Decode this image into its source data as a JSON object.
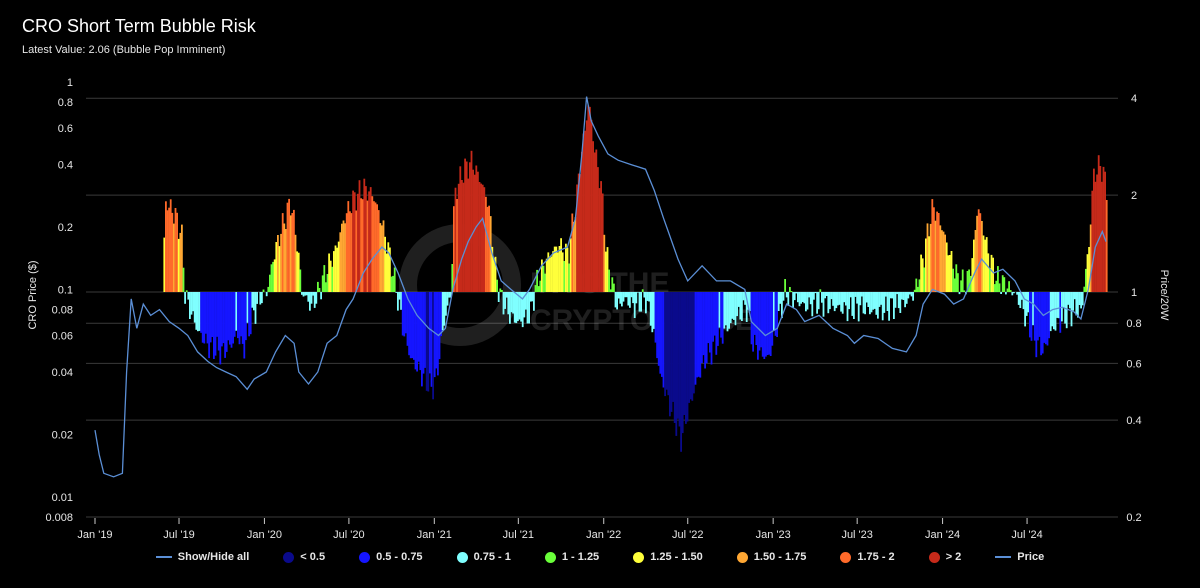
{
  "header": {
    "title": "CRO Short Term Bubble Risk",
    "subtitle": "Latest Value: 2.06 (Bubble Pop Imminent)"
  },
  "watermark": {
    "text_line1": "INTO THE",
    "text_line2": "CRYPTOVERSE"
  },
  "legend": [
    {
      "label": "Show/Hide all",
      "kind": "line",
      "color": "#5b8fd6"
    },
    {
      "label": "< 0.5",
      "kind": "dot",
      "color": "#0a0a8c"
    },
    {
      "label": "0.5 - 0.75",
      "kind": "dot",
      "color": "#1515ff"
    },
    {
      "label": "0.75 - 1",
      "kind": "dot",
      "color": "#7fffff"
    },
    {
      "label": "1 - 1.25",
      "kind": "dot",
      "color": "#6aff3a"
    },
    {
      "label": "1.25 - 1.50",
      "kind": "dot",
      "color": "#ffff3a"
    },
    {
      "label": "1.50 - 1.75",
      "kind": "dot",
      "color": "#ffa733"
    },
    {
      "label": "1.75 - 2",
      "kind": "dot",
      "color": "#ff6a2a"
    },
    {
      "label": "> 2",
      "kind": "dot",
      "color": "#c62a1a"
    },
    {
      "label": "Price",
      "kind": "line",
      "color": "#5b8fd6"
    }
  ],
  "chart_data": {
    "type": "bar+line",
    "left_axis": {
      "label": "CRO Price ($)",
      "scale": "log",
      "range": [
        0.008,
        1
      ],
      "ticks": [
        {
          "v": 1,
          "t": "1"
        },
        {
          "v": 0.8,
          "t": "0.8"
        },
        {
          "v": 0.6,
          "t": "0.6"
        },
        {
          "v": 0.4,
          "t": "0.4"
        },
        {
          "v": 0.2,
          "t": "0.2"
        },
        {
          "v": 0.1,
          "t": "0.1"
        },
        {
          "v": 0.08,
          "t": "0.08"
        },
        {
          "v": 0.06,
          "t": "0.06"
        },
        {
          "v": 0.04,
          "t": "0.04"
        },
        {
          "v": 0.02,
          "t": "0.02"
        },
        {
          "v": 0.01,
          "t": "0.01"
        },
        {
          "v": 0.008,
          "t": "0.008"
        }
      ]
    },
    "right_axis": {
      "label": "Price/20W",
      "scale": "log",
      "range": [
        0.2,
        5
      ],
      "ticks": [
        {
          "v": 4,
          "t": "4"
        },
        {
          "v": 2,
          "t": "2"
        },
        {
          "v": 1,
          "t": "1"
        },
        {
          "v": 0.8,
          "t": "0.8"
        },
        {
          "v": 0.6,
          "t": "0.6"
        },
        {
          "v": 0.4,
          "t": "0.4"
        },
        {
          "v": 0.2,
          "t": "0.2"
        }
      ]
    },
    "x_axis": {
      "start": "2019-01-01",
      "end": "2024-12-31",
      "ticks": [
        {
          "d": "2019-01-01",
          "t": "Jan '19"
        },
        {
          "d": "2019-07-01",
          "t": "Jul '19"
        },
        {
          "d": "2020-01-01",
          "t": "Jan '20"
        },
        {
          "d": "2020-07-01",
          "t": "Jul '20"
        },
        {
          "d": "2021-01-01",
          "t": "Jan '21"
        },
        {
          "d": "2021-07-01",
          "t": "Jul '21"
        },
        {
          "d": "2022-01-01",
          "t": "Jan '22"
        },
        {
          "d": "2022-07-01",
          "t": "Jul '22"
        },
        {
          "d": "2023-01-01",
          "t": "Jan '23"
        },
        {
          "d": "2023-07-01",
          "t": "Jul '23"
        },
        {
          "d": "2024-01-01",
          "t": "Jan '24"
        },
        {
          "d": "2024-07-01",
          "t": "Jul '24"
        }
      ]
    },
    "bands": [
      {
        "lo": 0,
        "hi": 0.5,
        "color": "#0a0a8c"
      },
      {
        "lo": 0.5,
        "hi": 0.75,
        "color": "#1515ff"
      },
      {
        "lo": 0.75,
        "hi": 1,
        "color": "#7fffff"
      },
      {
        "lo": 1,
        "hi": 1.25,
        "color": "#6aff3a"
      },
      {
        "lo": 1.25,
        "hi": 1.5,
        "color": "#ffff3a"
      },
      {
        "lo": 1.5,
        "hi": 1.75,
        "color": "#ffa733"
      },
      {
        "lo": 1.75,
        "hi": 2,
        "color": "#ff6a2a"
      },
      {
        "lo": 2,
        "hi": 100,
        "color": "#c62a1a"
      }
    ],
    "ratio_series": {
      "name": "Price/20W",
      "points": [
        [
          "2019-05-25",
          1.0
        ],
        [
          "2019-06-01",
          1.9
        ],
        [
          "2019-06-20",
          1.75
        ],
        [
          "2019-07-05",
          1.5
        ],
        [
          "2019-07-12",
          1.0
        ],
        [
          "2019-07-20",
          0.9
        ],
        [
          "2019-08-10",
          0.75
        ],
        [
          "2019-09-01",
          0.68
        ],
        [
          "2019-10-01",
          0.65
        ],
        [
          "2019-10-25",
          0.7
        ],
        [
          "2019-11-01",
          0.75
        ],
        [
          "2019-11-15",
          0.66
        ],
        [
          "2019-12-01",
          0.8
        ],
        [
          "2019-12-20",
          0.95
        ],
        [
          "2020-01-05",
          1.0
        ],
        [
          "2020-01-20",
          1.3
        ],
        [
          "2020-02-10",
          1.65
        ],
        [
          "2020-02-25",
          1.9
        ],
        [
          "2020-03-10",
          1.4
        ],
        [
          "2020-03-20",
          1.0
        ],
        [
          "2020-04-10",
          0.9
        ],
        [
          "2020-04-25",
          1.0
        ],
        [
          "2020-05-10",
          1.15
        ],
        [
          "2020-06-01",
          1.35
        ],
        [
          "2020-06-20",
          1.7
        ],
        [
          "2020-07-10",
          1.95
        ],
        [
          "2020-08-01",
          2.1
        ],
        [
          "2020-08-20",
          2.0
        ],
        [
          "2020-09-05",
          1.7
        ],
        [
          "2020-09-25",
          1.3
        ],
        [
          "2020-10-10",
          1.0
        ],
        [
          "2020-10-25",
          0.75
        ],
        [
          "2020-11-10",
          0.62
        ],
        [
          "2020-12-05",
          0.55
        ],
        [
          "2020-12-25",
          0.5
        ],
        [
          "2021-01-05",
          0.55
        ],
        [
          "2021-01-20",
          0.8
        ],
        [
          "2021-02-05",
          1.0
        ],
        [
          "2021-02-12",
          2.0
        ],
        [
          "2021-03-01",
          2.35
        ],
        [
          "2021-03-20",
          2.55
        ],
        [
          "2021-04-10",
          2.2
        ],
        [
          "2021-04-25",
          1.9
        ],
        [
          "2021-05-10",
          1.2
        ],
        [
          "2021-05-20",
          0.98
        ],
        [
          "2021-06-10",
          0.85
        ],
        [
          "2021-07-01",
          0.8
        ],
        [
          "2021-07-25",
          0.85
        ],
        [
          "2021-08-10",
          1.1
        ],
        [
          "2021-09-05",
          1.3
        ],
        [
          "2021-09-25",
          1.4
        ],
        [
          "2021-10-15",
          1.3
        ],
        [
          "2021-11-01",
          1.9
        ],
        [
          "2021-11-20",
          3.2
        ],
        [
          "2021-11-28",
          3.9
        ],
        [
          "2021-12-10",
          2.8
        ],
        [
          "2021-12-25",
          2.1
        ],
        [
          "2022-01-05",
          1.3
        ],
        [
          "2022-01-15",
          1.1
        ],
        [
          "2022-01-28",
          0.9
        ],
        [
          "2022-02-15",
          0.95
        ],
        [
          "2022-03-05",
          0.9
        ],
        [
          "2022-04-01",
          0.95
        ],
        [
          "2022-05-01",
          0.55
        ],
        [
          "2022-05-20",
          0.45
        ],
        [
          "2022-06-15",
          0.35
        ],
        [
          "2022-07-05",
          0.45
        ],
        [
          "2022-08-01",
          0.6
        ],
        [
          "2022-09-01",
          0.7
        ],
        [
          "2022-10-01",
          0.8
        ],
        [
          "2022-11-05",
          0.9
        ],
        [
          "2022-11-15",
          0.7
        ],
        [
          "2022-12-01",
          0.65
        ],
        [
          "2022-12-20",
          0.62
        ],
        [
          "2023-01-05",
          0.75
        ],
        [
          "2023-01-25",
          1.0
        ],
        [
          "2023-02-15",
          0.95
        ],
        [
          "2023-03-10",
          0.9
        ],
        [
          "2023-04-10",
          0.93
        ],
        [
          "2023-05-10",
          0.9
        ],
        [
          "2023-06-10",
          0.88
        ],
        [
          "2023-07-10",
          0.9
        ],
        [
          "2023-08-10",
          0.86
        ],
        [
          "2023-09-10",
          0.9
        ],
        [
          "2023-10-10",
          0.92
        ],
        [
          "2023-11-01",
          1.0
        ],
        [
          "2023-11-20",
          1.3
        ],
        [
          "2023-12-10",
          1.85
        ],
        [
          "2023-12-25",
          1.65
        ],
        [
          "2024-01-15",
          1.3
        ],
        [
          "2024-02-01",
          1.1
        ],
        [
          "2024-02-20",
          1.05
        ],
        [
          "2024-03-05",
          1.3
        ],
        [
          "2024-03-15",
          1.85
        ],
        [
          "2024-04-05",
          1.35
        ],
        [
          "2024-04-25",
          1.1
        ],
        [
          "2024-05-15",
          1.05
        ],
        [
          "2024-06-05",
          0.98
        ],
        [
          "2024-06-25",
          0.85
        ],
        [
          "2024-07-15",
          0.7
        ],
        [
          "2024-08-05",
          0.66
        ],
        [
          "2024-08-25",
          0.78
        ],
        [
          "2024-09-15",
          0.82
        ],
        [
          "2024-10-10",
          0.88
        ],
        [
          "2024-10-25",
          0.87
        ],
        [
          "2024-11-10",
          1.4
        ],
        [
          "2024-11-20",
          2.3
        ],
        [
          "2024-12-05",
          2.5
        ],
        [
          "2024-12-18",
          2.1
        ]
      ]
    },
    "price_series": {
      "name": "Price",
      "color": "#5b8fd6",
      "points": [
        [
          "2019-01-01",
          0.021
        ],
        [
          "2019-01-10",
          0.016
        ],
        [
          "2019-01-20",
          0.013
        ],
        [
          "2019-02-10",
          0.0125
        ],
        [
          "2019-03-01",
          0.013
        ],
        [
          "2019-03-10",
          0.04
        ],
        [
          "2019-03-20",
          0.09
        ],
        [
          "2019-04-01",
          0.065
        ],
        [
          "2019-04-15",
          0.085
        ],
        [
          "2019-05-01",
          0.075
        ],
        [
          "2019-05-20",
          0.08
        ],
        [
          "2019-06-10",
          0.07
        ],
        [
          "2019-07-01",
          0.065
        ],
        [
          "2019-07-20",
          0.06
        ],
        [
          "2019-08-10",
          0.05
        ],
        [
          "2019-09-01",
          0.045
        ],
        [
          "2019-09-20",
          0.042
        ],
        [
          "2019-10-10",
          0.04
        ],
        [
          "2019-11-01",
          0.038
        ],
        [
          "2019-11-25",
          0.033
        ],
        [
          "2019-12-10",
          0.037
        ],
        [
          "2020-01-05",
          0.04
        ],
        [
          "2020-01-25",
          0.05
        ],
        [
          "2020-02-15",
          0.06
        ],
        [
          "2020-03-05",
          0.055
        ],
        [
          "2020-03-15",
          0.04
        ],
        [
          "2020-04-05",
          0.035
        ],
        [
          "2020-04-25",
          0.04
        ],
        [
          "2020-05-15",
          0.055
        ],
        [
          "2020-06-05",
          0.06
        ],
        [
          "2020-06-25",
          0.08
        ],
        [
          "2020-07-10",
          0.09
        ],
        [
          "2020-08-01",
          0.12
        ],
        [
          "2020-08-20",
          0.14
        ],
        [
          "2020-09-10",
          0.16
        ],
        [
          "2020-09-25",
          0.15
        ],
        [
          "2020-10-15",
          0.12
        ],
        [
          "2020-11-05",
          0.09
        ],
        [
          "2020-11-25",
          0.075
        ],
        [
          "2020-12-20",
          0.065
        ],
        [
          "2021-01-10",
          0.06
        ],
        [
          "2021-01-25",
          0.065
        ],
        [
          "2021-02-10",
          0.1
        ],
        [
          "2021-03-01",
          0.14
        ],
        [
          "2021-03-15",
          0.17
        ],
        [
          "2021-04-01",
          0.2
        ],
        [
          "2021-04-15",
          0.22
        ],
        [
          "2021-05-05",
          0.15
        ],
        [
          "2021-05-25",
          0.11
        ],
        [
          "2021-06-15",
          0.1
        ],
        [
          "2021-07-10",
          0.09
        ],
        [
          "2021-07-25",
          0.1
        ],
        [
          "2021-08-20",
          0.13
        ],
        [
          "2021-09-15",
          0.15
        ],
        [
          "2021-10-15",
          0.16
        ],
        [
          "2021-11-01",
          0.22
        ],
        [
          "2021-11-15",
          0.45
        ],
        [
          "2021-11-25",
          0.85
        ],
        [
          "2021-12-05",
          0.65
        ],
        [
          "2021-12-20",
          0.55
        ],
        [
          "2022-01-10",
          0.45
        ],
        [
          "2022-02-01",
          0.42
        ],
        [
          "2022-03-01",
          0.4
        ],
        [
          "2022-04-01",
          0.38
        ],
        [
          "2022-04-20",
          0.3
        ],
        [
          "2022-05-10",
          0.22
        ],
        [
          "2022-05-20",
          0.19
        ],
        [
          "2022-06-10",
          0.14
        ],
        [
          "2022-07-01",
          0.11
        ],
        [
          "2022-08-01",
          0.13
        ],
        [
          "2022-09-01",
          0.11
        ],
        [
          "2022-10-01",
          0.11
        ],
        [
          "2022-11-01",
          0.1
        ],
        [
          "2022-11-15",
          0.07
        ],
        [
          "2022-12-15",
          0.06
        ],
        [
          "2023-01-10",
          0.065
        ],
        [
          "2023-01-30",
          0.085
        ],
        [
          "2023-02-20",
          0.08
        ],
        [
          "2023-03-10",
          0.07
        ],
        [
          "2023-04-10",
          0.075
        ],
        [
          "2023-05-10",
          0.065
        ],
        [
          "2023-06-10",
          0.06
        ],
        [
          "2023-06-25",
          0.055
        ],
        [
          "2023-07-15",
          0.06
        ],
        [
          "2023-08-15",
          0.058
        ],
        [
          "2023-09-15",
          0.052
        ],
        [
          "2023-10-15",
          0.05
        ],
        [
          "2023-11-05",
          0.06
        ],
        [
          "2023-11-20",
          0.085
        ],
        [
          "2023-12-10",
          0.1
        ],
        [
          "2024-01-05",
          0.095
        ],
        [
          "2024-01-25",
          0.085
        ],
        [
          "2024-02-15",
          0.09
        ],
        [
          "2024-03-10",
          0.12
        ],
        [
          "2024-03-25",
          0.14
        ],
        [
          "2024-04-20",
          0.12
        ],
        [
          "2024-05-10",
          0.125
        ],
        [
          "2024-06-05",
          0.11
        ],
        [
          "2024-06-25",
          0.09
        ],
        [
          "2024-07-15",
          0.085
        ],
        [
          "2024-08-05",
          0.075
        ],
        [
          "2024-08-25",
          0.08
        ],
        [
          "2024-09-15",
          0.082
        ],
        [
          "2024-10-10",
          0.078
        ],
        [
          "2024-10-25",
          0.072
        ],
        [
          "2024-11-10",
          0.1
        ],
        [
          "2024-11-25",
          0.16
        ],
        [
          "2024-12-10",
          0.19
        ],
        [
          "2024-12-18",
          0.17
        ]
      ]
    }
  }
}
